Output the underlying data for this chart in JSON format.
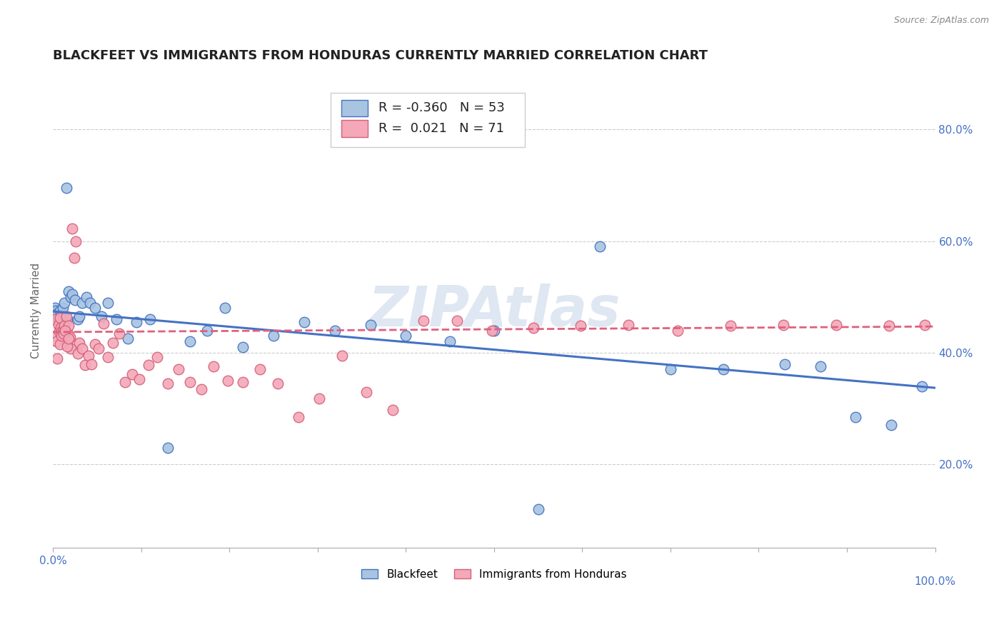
{
  "title": "BLACKFEET VS IMMIGRANTS FROM HONDURAS CURRENTLY MARRIED CORRELATION CHART",
  "source": "Source: ZipAtlas.com",
  "ylabel": "Currently Married",
  "r_blackfeet": -0.36,
  "n_blackfeet": 53,
  "r_honduras": 0.021,
  "n_honduras": 71,
  "blackfeet_color": "#a8c4e0",
  "honduras_color": "#f4a8b8",
  "blackfeet_line_color": "#4472C4",
  "honduras_line_color": "#e06080",
  "watermark": "ZIPAtlas",
  "blackfeet_x": [
    0.002,
    0.003,
    0.004,
    0.005,
    0.006,
    0.007,
    0.008,
    0.009,
    0.01,
    0.01,
    0.011,
    0.012,
    0.013,
    0.014,
    0.015,
    0.016,
    0.018,
    0.02,
    0.022,
    0.025,
    0.028,
    0.03,
    0.033,
    0.038,
    0.042,
    0.048,
    0.055,
    0.062,
    0.072,
    0.085,
    0.095,
    0.11,
    0.13,
    0.155,
    0.175,
    0.195,
    0.215,
    0.25,
    0.285,
    0.32,
    0.36,
    0.4,
    0.45,
    0.5,
    0.55,
    0.62,
    0.7,
    0.76,
    0.83,
    0.87,
    0.91,
    0.95,
    0.985
  ],
  "blackfeet_y": [
    0.48,
    0.475,
    0.465,
    0.47,
    0.46,
    0.455,
    0.475,
    0.46,
    0.452,
    0.468,
    0.48,
    0.462,
    0.49,
    0.455,
    0.695,
    0.46,
    0.51,
    0.5,
    0.505,
    0.495,
    0.46,
    0.465,
    0.49,
    0.5,
    0.49,
    0.48,
    0.465,
    0.49,
    0.46,
    0.425,
    0.455,
    0.46,
    0.23,
    0.42,
    0.44,
    0.48,
    0.41,
    0.43,
    0.455,
    0.44,
    0.45,
    0.43,
    0.42,
    0.44,
    0.12,
    0.59,
    0.37,
    0.37,
    0.38,
    0.375,
    0.285,
    0.27,
    0.34
  ],
  "honduras_x": [
    0.002,
    0.003,
    0.004,
    0.005,
    0.006,
    0.007,
    0.008,
    0.009,
    0.01,
    0.011,
    0.012,
    0.013,
    0.014,
    0.015,
    0.016,
    0.017,
    0.018,
    0.019,
    0.02,
    0.022,
    0.024,
    0.026,
    0.028,
    0.03,
    0.033,
    0.036,
    0.04,
    0.044,
    0.048,
    0.052,
    0.057,
    0.062,
    0.068,
    0.075,
    0.082,
    0.09,
    0.098,
    0.108,
    0.118,
    0.13,
    0.142,
    0.155,
    0.168,
    0.182,
    0.198,
    0.215,
    0.235,
    0.255,
    0.278,
    0.302,
    0.328,
    0.355,
    0.385,
    0.42,
    0.458,
    0.498,
    0.545,
    0.598,
    0.652,
    0.708,
    0.768,
    0.828,
    0.888,
    0.948,
    0.988,
    0.008,
    0.01,
    0.012,
    0.014,
    0.016,
    0.018
  ],
  "honduras_y": [
    0.46,
    0.43,
    0.42,
    0.39,
    0.45,
    0.438,
    0.462,
    0.445,
    0.438,
    0.428,
    0.442,
    0.448,
    0.43,
    0.465,
    0.418,
    0.435,
    0.448,
    0.428,
    0.408,
    0.622,
    0.57,
    0.6,
    0.398,
    0.418,
    0.408,
    0.378,
    0.395,
    0.38,
    0.415,
    0.408,
    0.452,
    0.392,
    0.418,
    0.435,
    0.348,
    0.362,
    0.352,
    0.378,
    0.392,
    0.345,
    0.37,
    0.348,
    0.335,
    0.375,
    0.35,
    0.348,
    0.37,
    0.345,
    0.285,
    0.318,
    0.395,
    0.33,
    0.298,
    0.458,
    0.458,
    0.44,
    0.445,
    0.448,
    0.45,
    0.44,
    0.448,
    0.45,
    0.45,
    0.448,
    0.45,
    0.415,
    0.43,
    0.435,
    0.44,
    0.412,
    0.425
  ],
  "xlim": [
    0.0,
    1.0
  ],
  "ylim": [
    0.05,
    0.9
  ],
  "yticks": [
    0.2,
    0.4,
    0.6,
    0.8
  ],
  "ytick_labels": [
    "20.0%",
    "40.0%",
    "60.0%",
    "80.0%"
  ],
  "xticks": [
    0.0,
    0.1,
    0.2,
    0.3,
    0.4,
    0.5,
    0.6,
    0.7,
    0.8,
    0.9,
    1.0
  ],
  "grid_color": "#cccccc",
  "background_color": "#ffffff",
  "title_fontsize": 13,
  "axis_label_fontsize": 11,
  "tick_fontsize": 11,
  "legend_fontsize": 13,
  "watermark_color": "#c8d8ea",
  "watermark_fontsize": 56,
  "blue_line_start": 0.474,
  "blue_line_end": 0.337,
  "pink_line_start": 0.437,
  "pink_line_end": 0.447
}
